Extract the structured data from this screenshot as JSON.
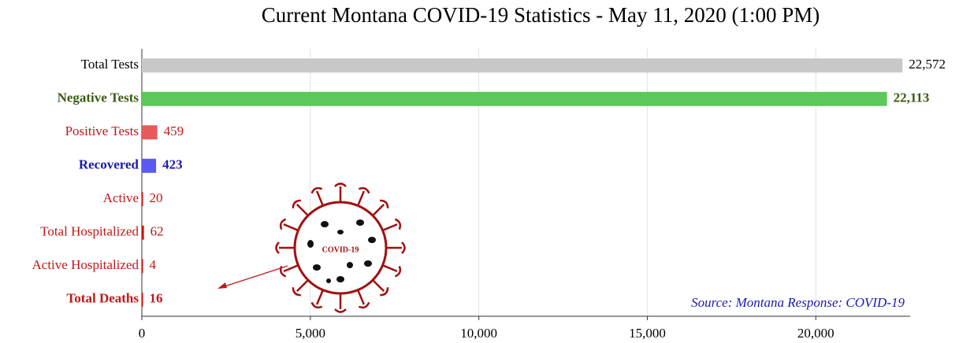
{
  "chart_data": {
    "type": "hbar",
    "title": "Current Montana COVID-19 Statistics - May 11, 2020 (1:00 PM)",
    "categories": [
      "Total Tests",
      "Negative Tests",
      "Positive Tests",
      "Recovered",
      "Active",
      "Total Hospitalized",
      "Active Hospitalized",
      "Total Deaths"
    ],
    "values": [
      22572,
      22113,
      459,
      423,
      20,
      62,
      4,
      16
    ],
    "value_labels": [
      "22,572",
      "22,113",
      "459",
      "423",
      "20",
      "62",
      "4",
      "16"
    ],
    "colors": [
      "#c8c8c8",
      "#5ac85a",
      "#e85a5a",
      "#5a5aee",
      "#cc1111",
      "#cc1111",
      "#cc1111",
      "#cc1111"
    ],
    "label_colors": [
      "#000000",
      "#3a5a10",
      "#c01818",
      "#1a1ab0",
      "#c01818",
      "#c01818",
      "#c01818",
      "#c01818"
    ],
    "bold": [
      false,
      true,
      false,
      true,
      false,
      false,
      false,
      true
    ],
    "xlim": [
      0,
      22800
    ],
    "xticks": [
      0,
      {
        "value": 5000,
        "label": "5,000"
      },
      {
        "value": 10000,
        "label": "10,000"
      },
      {
        "value": 15000,
        "label": "15,000"
      },
      {
        "value": 20000,
        "label": "20,000"
      }
    ],
    "grid": true,
    "annotation": "Source: Montana Response: COVID-19",
    "icon_label": "COVID-19"
  }
}
